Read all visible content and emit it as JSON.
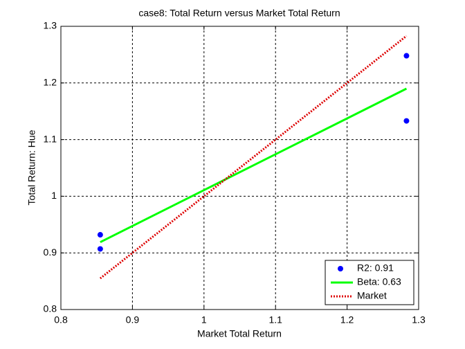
{
  "chart_data": {
    "type": "scatter",
    "title": "case8: Total Return versus Market Total Return",
    "x_label": "Market Total Return",
    "y_label": "Total Return: Hue",
    "series": [
      {
        "name": "R2: 0.91",
        "color": "#0000ff",
        "mode": "markers",
        "x": [
          0.855,
          0.855,
          1.283,
          1.283
        ],
        "values": [
          0.932,
          0.907,
          1.248,
          1.133
        ]
      },
      {
        "name": "Beta: 0.63",
        "color": "#00ff00",
        "mode": "line",
        "style": "solid",
        "x": [
          0.855,
          1.283
        ],
        "values": [
          0.919,
          1.19
        ]
      },
      {
        "name": "Market",
        "color": "#dd0000",
        "mode": "line",
        "style": "dotted",
        "x": [
          0.855,
          1.283
        ],
        "values": [
          0.855,
          1.283
        ]
      }
    ],
    "xlim": [
      0.8,
      1.3
    ],
    "xticks": [
      0.8,
      0.9,
      1,
      1.1,
      1.2,
      1.3
    ],
    "ylim": [
      0.8,
      1.3
    ],
    "yticks": [
      0.8,
      0.9,
      1,
      1.1,
      1.2,
      1.3
    ],
    "grid": true,
    "legend_position": "lower right"
  }
}
